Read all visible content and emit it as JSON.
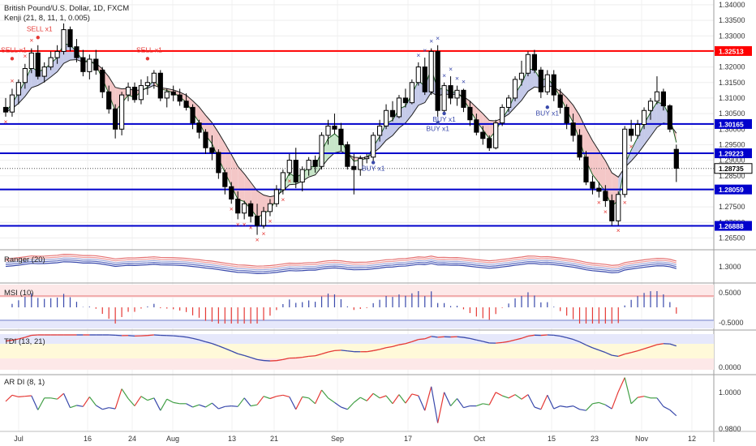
{
  "header": {
    "title": "British Pound/U.S. Dollar, 1D, FXCM",
    "indicator": "Kenji (21, 8, 11, 1, 0.005)"
  },
  "panels": {
    "ranger": "Ranger (20)",
    "msi": "MSI (10)",
    "tdi": "TDI (13, 21)",
    "ardi": "AR DI (8, 1)"
  },
  "colors": {
    "up": "#ffffff",
    "down": "#000000",
    "level_red": "#ff0000",
    "level_blue": "#0000cc",
    "sell_marker": "#e53935",
    "buy_marker": "#3949ab",
    "cloud_bear": "#f4c7c7",
    "cloud_bull": "#c5cae9",
    "cloud_green": "#c8e6c9"
  },
  "chart_data": {
    "type": "candlestick",
    "x_labels": [
      "Jul",
      "16",
      "24",
      "Aug",
      "13",
      "21",
      "Sep",
      "17",
      "Oct",
      "15",
      "23",
      "Nov",
      "12"
    ],
    "y_ticks": [
      "1.34000",
      "1.33500",
      "1.33000",
      "1.32500",
      "1.32000",
      "1.31500",
      "1.31000",
      "1.30500",
      "1.30000",
      "1.29500",
      "1.29000",
      "1.28500",
      "1.28000",
      "1.27500",
      "1.27000",
      "1.26500"
    ],
    "ylim": [
      1.2625,
      1.3405
    ],
    "price_labels": [
      "1.32513",
      "1.31500",
      "1.31000",
      "1.30500",
      "1.30165",
      "1.29500",
      "1.29223",
      "1.28735",
      "1.28500",
      "1.28059",
      "1.27500",
      "1.27000",
      "1.26888"
    ],
    "red_levels": [
      {
        "value": 1.32513,
        "label": "1.32513"
      }
    ],
    "blue_levels": [
      {
        "value": 1.30165,
        "label": "1.30165"
      },
      {
        "value": 1.29223,
        "label": "1.29223"
      },
      {
        "value": 1.28059,
        "label": "1.28059"
      },
      {
        "value": 1.26888,
        "label": "1.26888"
      }
    ],
    "last_price": {
      "value": 1.28735,
      "label": "1.28735"
    },
    "candles": [
      [
        1.307,
        1.31,
        1.304,
        1.3055
      ],
      [
        1.3055,
        1.313,
        1.304,
        1.311
      ],
      [
        1.311,
        1.316,
        1.308,
        1.315
      ],
      [
        1.315,
        1.321,
        1.313,
        1.3195
      ],
      [
        1.3195,
        1.326,
        1.318,
        1.3245
      ],
      [
        1.3245,
        1.327,
        1.316,
        1.317
      ],
      [
        1.317,
        1.3215,
        1.315,
        1.32
      ],
      [
        1.32,
        1.325,
        1.319,
        1.323
      ],
      [
        1.323,
        1.327,
        1.321,
        1.325
      ],
      [
        1.325,
        1.334,
        1.324,
        1.332
      ],
      [
        1.332,
        1.333,
        1.325,
        1.3265
      ],
      [
        1.3265,
        1.329,
        1.3215,
        1.323
      ],
      [
        1.323,
        1.3255,
        1.317,
        1.3185
      ],
      [
        1.3185,
        1.324,
        1.316,
        1.3225
      ],
      [
        1.3225,
        1.3255,
        1.3175,
        1.319
      ],
      [
        1.319,
        1.32,
        1.31,
        1.312
      ],
      [
        1.312,
        1.314,
        1.305,
        1.3065
      ],
      [
        1.3065,
        1.308,
        1.297,
        1.3
      ],
      [
        1.3,
        1.312,
        1.298,
        1.311
      ],
      [
        1.311,
        1.315,
        1.309,
        1.3135
      ],
      [
        1.3135,
        1.315,
        1.3085,
        1.3095
      ],
      [
        1.3095,
        1.316,
        1.308,
        1.314
      ],
      [
        1.314,
        1.317,
        1.311,
        1.315
      ],
      [
        1.315,
        1.319,
        1.313,
        1.318
      ],
      [
        1.318,
        1.319,
        1.309,
        1.31
      ],
      [
        1.31,
        1.313,
        1.307,
        1.312
      ],
      [
        1.312,
        1.314,
        1.309,
        1.311
      ],
      [
        1.311,
        1.313,
        1.3075,
        1.309
      ],
      [
        1.309,
        1.3115,
        1.306,
        1.307
      ],
      [
        1.307,
        1.308,
        1.3,
        1.302
      ],
      [
        1.302,
        1.303,
        1.297,
        1.299
      ],
      [
        1.299,
        1.3,
        1.292,
        1.294
      ],
      [
        1.294,
        1.298,
        1.29,
        1.2925
      ],
      [
        1.2925,
        1.2935,
        1.284,
        1.286
      ],
      [
        1.286,
        1.287,
        1.279,
        1.2815
      ],
      [
        1.2815,
        1.283,
        1.276,
        1.2775
      ],
      [
        1.2775,
        1.28,
        1.271,
        1.273
      ],
      [
        1.273,
        1.277,
        1.271,
        1.276
      ],
      [
        1.276,
        1.277,
        1.27,
        1.272
      ],
      [
        1.272,
        1.276,
        1.266,
        1.269
      ],
      [
        1.269,
        1.275,
        1.268,
        1.2735
      ],
      [
        1.2735,
        1.2775,
        1.272,
        1.276
      ],
      [
        1.276,
        1.282,
        1.275,
        1.2805
      ],
      [
        1.2805,
        1.287,
        1.279,
        1.286
      ],
      [
        1.286,
        1.292,
        1.285,
        1.29
      ],
      [
        1.29,
        1.294,
        1.281,
        1.283
      ],
      [
        1.283,
        1.288,
        1.28,
        1.287
      ],
      [
        1.287,
        1.291,
        1.285,
        1.29
      ],
      [
        1.29,
        1.2915,
        1.286,
        1.288
      ],
      [
        1.288,
        1.299,
        1.287,
        1.298
      ],
      [
        1.298,
        1.303,
        1.295,
        1.301
      ],
      [
        1.301,
        1.305,
        1.2985,
        1.3
      ],
      [
        1.3,
        1.302,
        1.293,
        1.295
      ],
      [
        1.295,
        1.296,
        1.287,
        1.288
      ],
      [
        1.288,
        1.292,
        1.279,
        1.287
      ],
      [
        1.287,
        1.2915,
        1.285,
        1.2905
      ],
      [
        1.2905,
        1.292,
        1.289,
        1.291
      ],
      [
        1.291,
        1.299,
        1.2895,
        1.298
      ],
      [
        1.298,
        1.303,
        1.296,
        1.301
      ],
      [
        1.301,
        1.308,
        1.3,
        1.306
      ],
      [
        1.306,
        1.309,
        1.3025,
        1.304
      ],
      [
        1.304,
        1.311,
        1.3035,
        1.31
      ],
      [
        1.31,
        1.313,
        1.307,
        1.3085
      ],
      [
        1.3085,
        1.316,
        1.308,
        1.315
      ],
      [
        1.315,
        1.3215,
        1.314,
        1.32
      ],
      [
        1.32,
        1.323,
        1.311,
        1.312
      ],
      [
        1.312,
        1.326,
        1.311,
        1.325
      ],
      [
        1.325,
        1.327,
        1.304,
        1.306
      ],
      [
        1.306,
        1.315,
        1.305,
        1.314
      ],
      [
        1.314,
        1.317,
        1.308,
        1.31
      ],
      [
        1.31,
        1.314,
        1.3075,
        1.3125
      ],
      [
        1.3125,
        1.313,
        1.3055,
        1.307
      ],
      [
        1.307,
        1.309,
        1.301,
        1.303
      ],
      [
        1.303,
        1.305,
        1.298,
        1.299
      ],
      [
        1.299,
        1.301,
        1.295,
        1.297
      ],
      [
        1.297,
        1.298,
        1.293,
        1.294
      ],
      [
        1.294,
        1.303,
        1.2935,
        1.302
      ],
      [
        1.302,
        1.308,
        1.301,
        1.307
      ],
      [
        1.307,
        1.311,
        1.3055,
        1.31
      ],
      [
        1.31,
        1.317,
        1.309,
        1.316
      ],
      [
        1.316,
        1.322,
        1.314,
        1.318
      ],
      [
        1.318,
        1.325,
        1.317,
        1.324
      ],
      [
        1.324,
        1.3255,
        1.318,
        1.319
      ],
      [
        1.319,
        1.32,
        1.31,
        1.312
      ],
      [
        1.312,
        1.319,
        1.311,
        1.3175
      ],
      [
        1.3175,
        1.319,
        1.309,
        1.311
      ],
      [
        1.311,
        1.313,
        1.305,
        1.307
      ],
      [
        1.307,
        1.308,
        1.3,
        1.302
      ],
      [
        1.302,
        1.305,
        1.296,
        1.298
      ],
      [
        1.298,
        1.3,
        1.29,
        1.291
      ],
      [
        1.291,
        1.293,
        1.282,
        1.283
      ],
      [
        1.283,
        1.285,
        1.279,
        1.281
      ],
      [
        1.281,
        1.283,
        1.278,
        1.28
      ],
      [
        1.28,
        1.282,
        1.275,
        1.277
      ],
      [
        1.277,
        1.279,
        1.269,
        1.2705
      ],
      [
        1.2705,
        1.28,
        1.269,
        1.279
      ],
      [
        1.279,
        1.301,
        1.278,
        1.3
      ],
      [
        1.3,
        1.303,
        1.296,
        1.298
      ],
      [
        1.298,
        1.303,
        1.297,
        1.3015
      ],
      [
        1.3015,
        1.307,
        1.3,
        1.306
      ],
      [
        1.306,
        1.31,
        1.303,
        1.309
      ],
      [
        1.309,
        1.317,
        1.308,
        1.312
      ],
      [
        1.312,
        1.313,
        1.306,
        1.3075
      ],
      [
        1.3075,
        1.308,
        1.299,
        1.3
      ],
      [
        1.2935,
        1.295,
        1.283,
        1.2874
      ]
    ],
    "sell_labels": [
      "SELL x1",
      "SELL x1",
      "SELL x1"
    ],
    "buy_labels": [
      "BUY x1",
      "BUY x1",
      "BUY x1",
      "BUY x1"
    ],
    "panel_ticks": {
      "ranger": [
        "1.3000"
      ],
      "msi": [
        "0.5000",
        "-0.5000"
      ],
      "tdi": [
        "0.0000"
      ],
      "ardi": [
        "1.0000",
        "0.9800"
      ]
    }
  }
}
